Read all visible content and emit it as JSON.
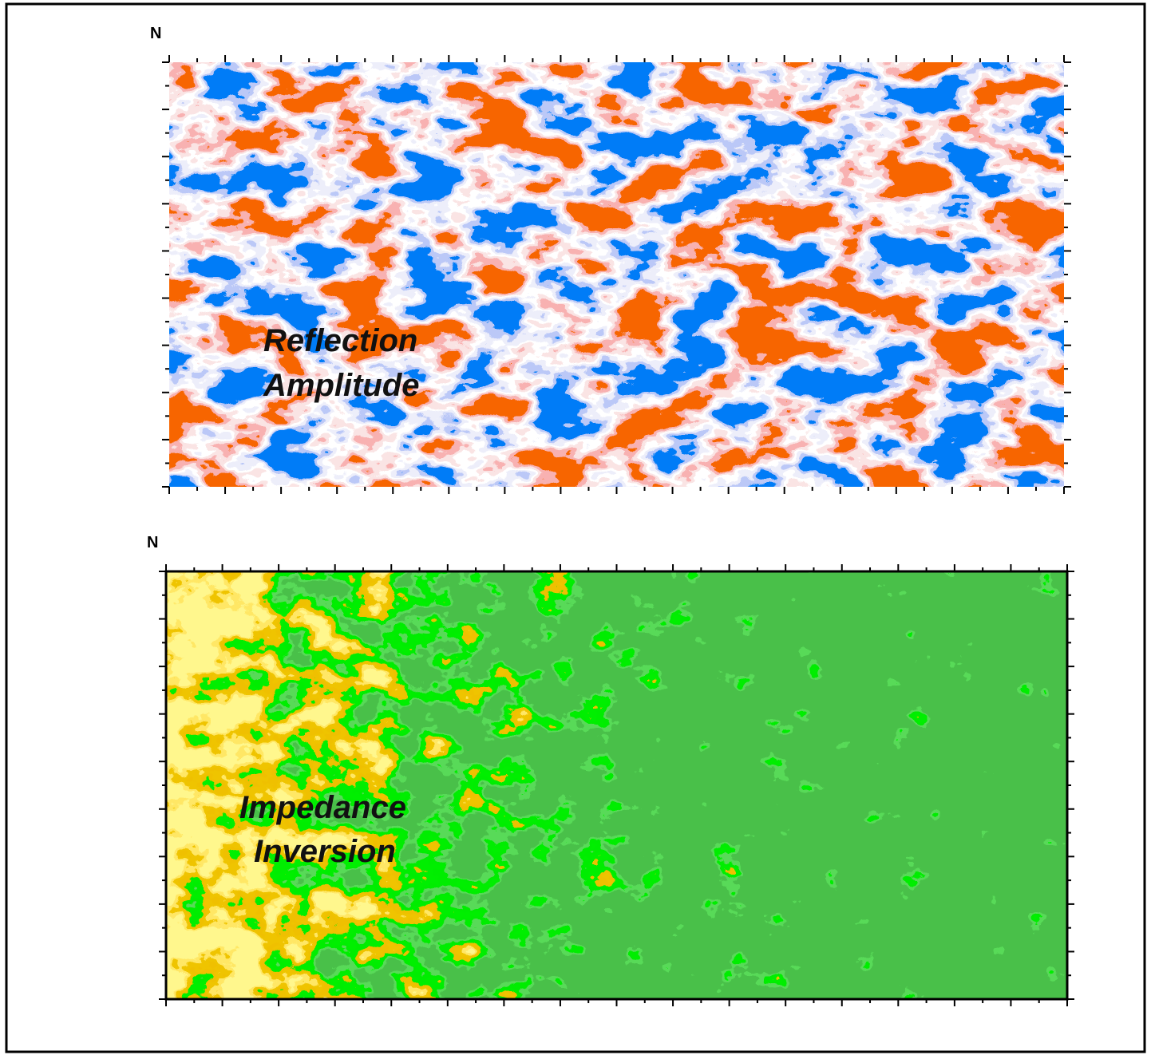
{
  "panels": [
    {
      "label_lines": [
        "Reflection",
        "Amplitude"
      ],
      "north": "N"
    },
    {
      "label_lines": [
        "Impedance",
        "Inversion"
      ],
      "north": "N"
    }
  ]
}
